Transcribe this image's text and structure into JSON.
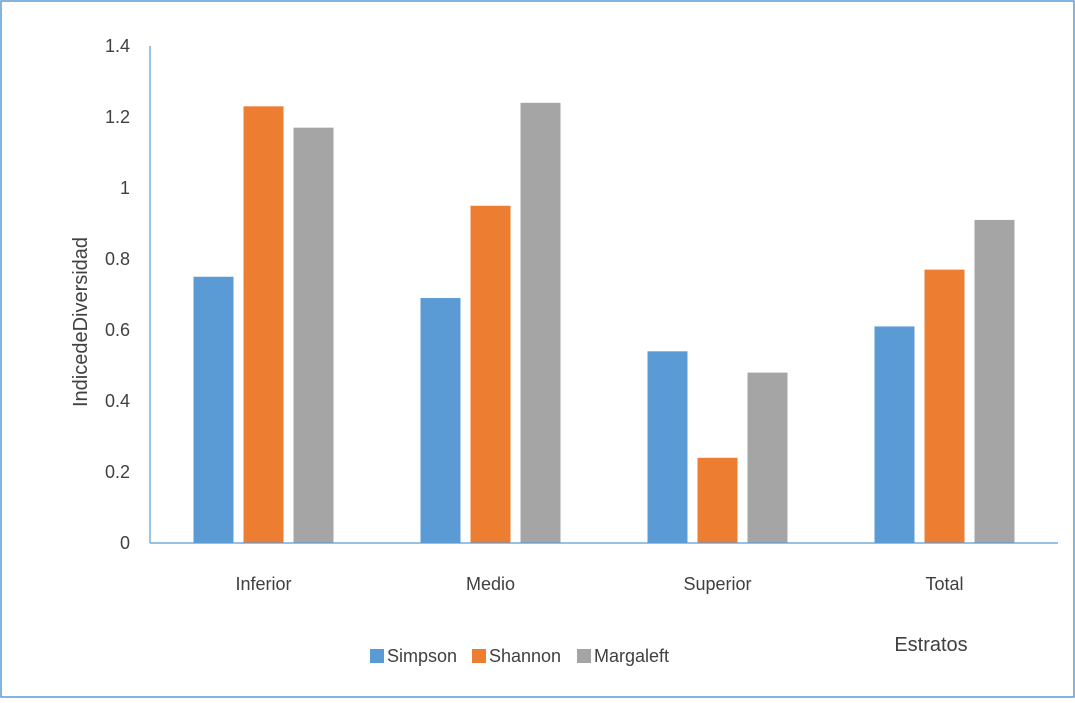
{
  "chart_data": {
    "type": "bar",
    "title": "",
    "ylabel": "IndicedeDiversidad",
    "xlabel": "Estratos",
    "ylim": [
      0,
      1.4
    ],
    "yticks": [
      "0",
      "0.2",
      "0.4",
      "0.6",
      "0.8",
      "1",
      "1.2",
      "1.4"
    ],
    "categories": [
      "Inferior",
      "Medio",
      "Superior",
      "Total"
    ],
    "series": [
      {
        "name": "Simpson",
        "color": "#5B9BD5",
        "values": [
          0.75,
          0.69,
          0.54,
          0.61
        ]
      },
      {
        "name": "Shannon",
        "color": "#ED7D31",
        "values": [
          1.23,
          0.95,
          0.24,
          0.77
        ]
      },
      {
        "name": "Margaleft",
        "color": "#A5A5A5",
        "values": [
          1.17,
          1.24,
          0.48,
          0.91
        ]
      }
    ],
    "legend_position": "bottom",
    "grid": false,
    "colors": {
      "border": "#5B9BD5",
      "axis": "#5B9BD5",
      "text": "#404040"
    }
  }
}
